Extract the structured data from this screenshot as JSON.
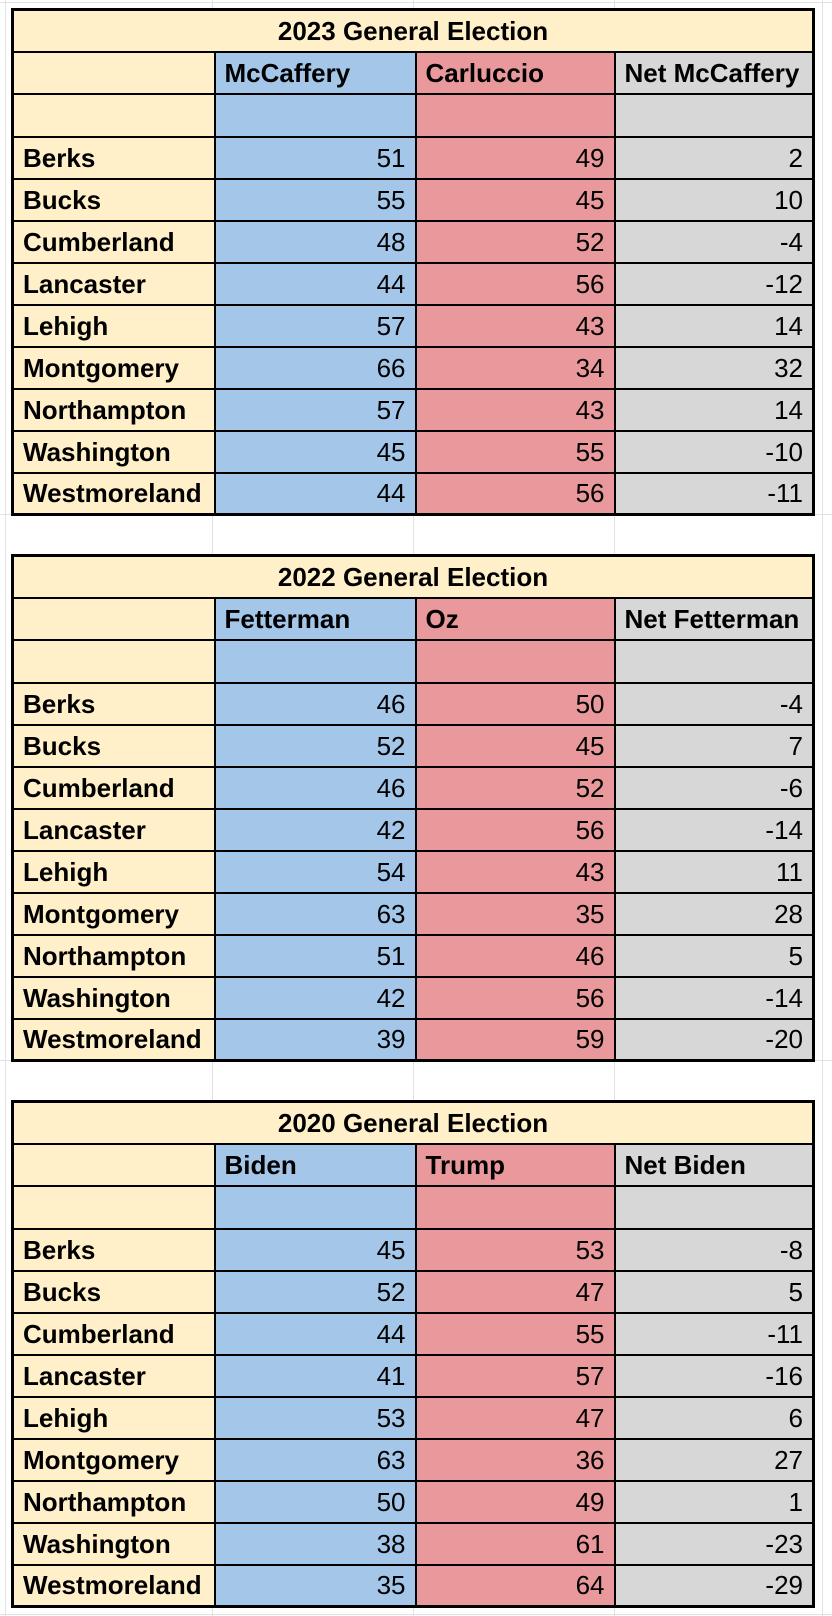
{
  "app": {
    "type": "spreadsheet"
  },
  "colors": {
    "background": "#FFFFFF",
    "gridline": "#E2E2E2",
    "border": "#000000",
    "text": "#000000",
    "county_fill": "#FFF0C9",
    "dem_fill": "#A3C6E9",
    "rep_fill": "#E9989B",
    "net_fill": "#D7D7D7"
  },
  "tables": [
    {
      "title": "2023 General Election",
      "columns": [
        "",
        "McCaffery",
        "Carluccio",
        "Net McCaffery"
      ],
      "rows": [
        {
          "county": "Berks",
          "dem": "51",
          "rep": "49",
          "net": "2"
        },
        {
          "county": "Bucks",
          "dem": "55",
          "rep": "45",
          "net": "10"
        },
        {
          "county": "Cumberland",
          "dem": "48",
          "rep": "52",
          "net": "-4"
        },
        {
          "county": "Lancaster",
          "dem": "44",
          "rep": "56",
          "net": "-12"
        },
        {
          "county": "Lehigh",
          "dem": "57",
          "rep": "43",
          "net": "14"
        },
        {
          "county": "Montgomery",
          "dem": "66",
          "rep": "34",
          "net": "32"
        },
        {
          "county": "Northampton",
          "dem": "57",
          "rep": "43",
          "net": "14"
        },
        {
          "county": "Washington",
          "dem": "45",
          "rep": "55",
          "net": "-10"
        },
        {
          "county": "Westmoreland",
          "dem": "44",
          "rep": "56",
          "net": "-11"
        }
      ]
    },
    {
      "title": "2022 General Election",
      "columns": [
        "",
        "Fetterman",
        "Oz",
        "Net Fetterman"
      ],
      "rows": [
        {
          "county": "Berks",
          "dem": "46",
          "rep": "50",
          "net": "-4"
        },
        {
          "county": "Bucks",
          "dem": "52",
          "rep": "45",
          "net": "7"
        },
        {
          "county": "Cumberland",
          "dem": "46",
          "rep": "52",
          "net": "-6"
        },
        {
          "county": "Lancaster",
          "dem": "42",
          "rep": "56",
          "net": "-14"
        },
        {
          "county": "Lehigh",
          "dem": "54",
          "rep": "43",
          "net": "11"
        },
        {
          "county": "Montgomery",
          "dem": "63",
          "rep": "35",
          "net": "28"
        },
        {
          "county": "Northampton",
          "dem": "51",
          "rep": "46",
          "net": "5"
        },
        {
          "county": "Washington",
          "dem": "42",
          "rep": "56",
          "net": "-14"
        },
        {
          "county": "Westmoreland",
          "dem": "39",
          "rep": "59",
          "net": "-20"
        }
      ]
    },
    {
      "title": "2020 General Election",
      "columns": [
        "",
        "Biden",
        "Trump",
        "Net Biden"
      ],
      "rows": [
        {
          "county": "Berks",
          "dem": "45",
          "rep": "53",
          "net": "-8"
        },
        {
          "county": "Bucks",
          "dem": "52",
          "rep": "47",
          "net": "5"
        },
        {
          "county": "Cumberland",
          "dem": "44",
          "rep": "55",
          "net": "-11"
        },
        {
          "county": "Lancaster",
          "dem": "41",
          "rep": "57",
          "net": "-16"
        },
        {
          "county": "Lehigh",
          "dem": "53",
          "rep": "47",
          "net": "6"
        },
        {
          "county": "Montgomery",
          "dem": "63",
          "rep": "36",
          "net": "27"
        },
        {
          "county": "Northampton",
          "dem": "50",
          "rep": "49",
          "net": "1"
        },
        {
          "county": "Washington",
          "dem": "38",
          "rep": "61",
          "net": "-23"
        },
        {
          "county": "Westmoreland",
          "dem": "35",
          "rep": "64",
          "net": "-29"
        }
      ]
    }
  ]
}
